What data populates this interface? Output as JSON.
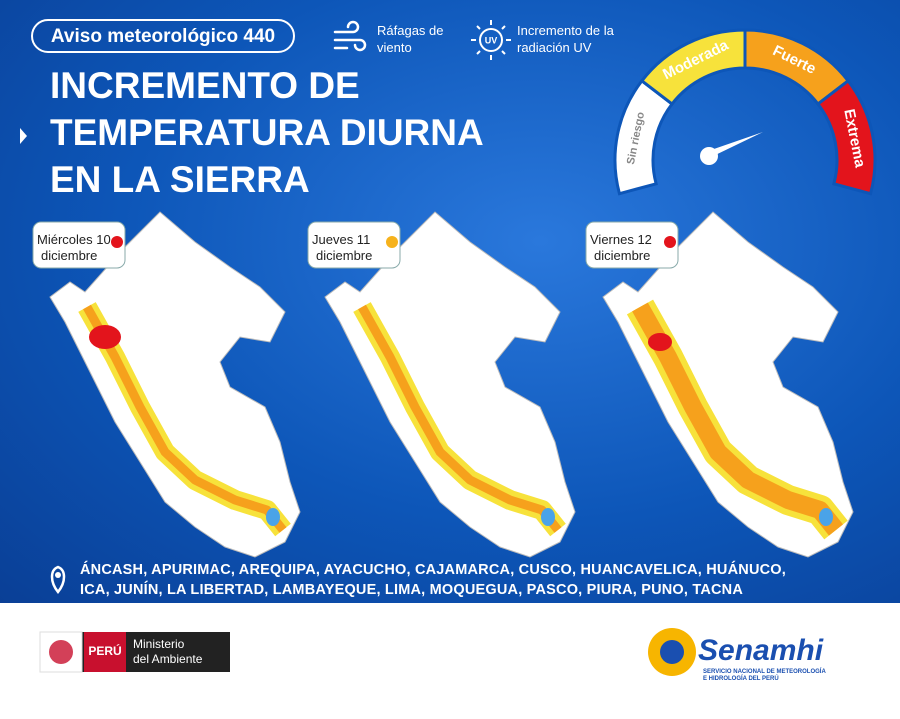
{
  "badge": "Aviso meteorológico 440",
  "icons": [
    {
      "label": [
        "Ráfagas de",
        "viento"
      ]
    },
    {
      "symbol": "UV",
      "label": [
        "Incremento de la",
        "radiación UV"
      ]
    }
  ],
  "title": [
    "INCREMENTO DE",
    "TEMPERATURA DIURNA",
    "EN LA SIERRA"
  ],
  "gauge": {
    "levels": [
      {
        "label": "Sin riesgo",
        "color": "#ffffff"
      },
      {
        "label": "Moderada",
        "color": "#f7e23b"
      },
      {
        "label": "Fuerte",
        "color": "#f6a11c"
      },
      {
        "label": "Extrema",
        "color": "#e3141c"
      }
    ]
  },
  "days": [
    {
      "label": [
        "Miércoles 10",
        "diciembre"
      ],
      "color": "#e3141c"
    },
    {
      "label": [
        "Jueves  11",
        "diciembre"
      ],
      "color": "#f6b21c"
    },
    {
      "label": [
        "Viernes 12",
        "diciembre"
      ],
      "color": "#e3141c"
    }
  ],
  "regions": "ÁNCASH, APURIMAC, AREQUIPA, AYACUCHO, CAJAMARCA, CUSCO, HUANCAVELICA, HUÁNUCO, ICA, JUNÍN, LA LIBERTAD, LAMBAYEQUE, LIMA, MOQUEGUA, PASCO, PIURA, PUNO, TACNA",
  "footer": {
    "country": "PERÚ",
    "ministry": [
      "Ministerio",
      "del Ambiente"
    ],
    "brand": "Senamhi",
    "brand_sub": [
      "SERVICIO NACIONAL DE METEOROLOGÍA",
      "E HIDROLOGÍA DEL PERÚ"
    ]
  }
}
